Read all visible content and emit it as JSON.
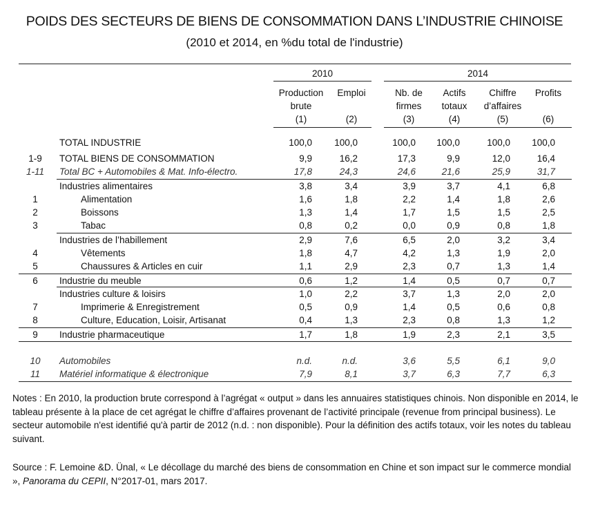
{
  "title": "POIDS DES SECTEURS DE BIENS DE CONSOMMATION DANS L’INDUSTRIE CHINOISE",
  "subtitle": "(2010 et 2014, en %du total de l'industrie)",
  "groups": {
    "y2010": "2010",
    "y2014": "2014"
  },
  "columns": [
    {
      "lines": [
        "Production",
        "brute"
      ],
      "num": "(1)"
    },
    {
      "lines": [
        "Emploi"
      ],
      "num": "(2)"
    },
    {
      "lines": [
        "Nb. de",
        "firmes"
      ],
      "num": "(3)"
    },
    {
      "lines": [
        "Actifs",
        "totaux"
      ],
      "num": "(4)"
    },
    {
      "lines": [
        "Chiffre",
        "d’affaires"
      ],
      "num": "(5)"
    },
    {
      "lines": [
        "Profits"
      ],
      "num": "(6)"
    }
  ],
  "rows": [
    {
      "code": "",
      "label": "TOTAL INDUSTRIE",
      "values": [
        "100,0",
        "100,0",
        "100,0",
        "100,0",
        "100,0",
        "100,0"
      ]
    },
    {
      "code": "1-9",
      "label": "TOTAL BIENS DE CONSOMMATION",
      "values": [
        "9,9",
        "16,2",
        "17,3",
        "9,9",
        "12,0",
        "16,4"
      ]
    },
    {
      "code": "1-11",
      "label": "Total BC + Automobiles & Mat. Info-électro.",
      "values": [
        "17,8",
        "24,3",
        "24,6",
        "21,6",
        "25,9",
        "31,7"
      ]
    },
    {
      "code": "",
      "label": "Industries alimentaires",
      "values": [
        "3,8",
        "3,4",
        "3,9",
        "3,7",
        "4,1",
        "6,8"
      ]
    },
    {
      "code": "1",
      "label": "Alimentation",
      "values": [
        "1,6",
        "1,8",
        "2,2",
        "1,4",
        "1,8",
        "2,6"
      ]
    },
    {
      "code": "2",
      "label": "Boissons",
      "values": [
        "1,3",
        "1,4",
        "1,7",
        "1,5",
        "1,5",
        "2,5"
      ]
    },
    {
      "code": "3",
      "label": "Tabac",
      "values": [
        "0,8",
        "0,2",
        "0,0",
        "0,9",
        "0,8",
        "1,8"
      ]
    },
    {
      "code": "",
      "label": "Industries de l’habillement",
      "values": [
        "2,9",
        "7,6",
        "6,5",
        "2,0",
        "3,2",
        "3,4"
      ]
    },
    {
      "code": "4",
      "label": "Vêtements",
      "values": [
        "1,8",
        "4,7",
        "4,2",
        "1,3",
        "1,9",
        "2,0"
      ]
    },
    {
      "code": "5",
      "label": "Chaussures & Articles en cuir",
      "values": [
        "1,1",
        "2,9",
        "2,3",
        "0,7",
        "1,3",
        "1,4"
      ]
    },
    {
      "code": "6",
      "label": "Industrie du meuble",
      "values": [
        "0,6",
        "1,2",
        "1,4",
        "0,5",
        "0,7",
        "0,7"
      ]
    },
    {
      "code": "",
      "label": "Industries culture & loisirs",
      "values": [
        "1,0",
        "2,2",
        "3,7",
        "1,3",
        "2,0",
        "2,0"
      ]
    },
    {
      "code": "7",
      "label": "Imprimerie & Enregistrement",
      "values": [
        "0,5",
        "0,9",
        "1,4",
        "0,5",
        "0,6",
        "0,8"
      ]
    },
    {
      "code": "8",
      "label": "Culture, Education, Loisir, Artisanat",
      "values": [
        "0,4",
        "1,3",
        "2,3",
        "0,8",
        "1,3",
        "1,2"
      ]
    },
    {
      "code": "9",
      "label": "Industrie pharmaceutique",
      "values": [
        "1,7",
        "1,8",
        "1,9",
        "2,3",
        "2,1",
        "3,5"
      ]
    },
    {
      "code": "10",
      "label": "Automobiles",
      "values": [
        "n.d.",
        "n.d.",
        "3,6",
        "5,5",
        "6,1",
        "9,0"
      ]
    },
    {
      "code": "11",
      "label": "Matériel informatique & électronique",
      "values": [
        "7,9",
        "8,1",
        "3,7",
        "6,3",
        "7,7",
        "6,3"
      ]
    }
  ],
  "notes": "Notes : En 2010, la production brute correspond à l’agrégat « output » dans les annuaires statistiques chinois. Non disponible en 2014, le tableau présente à la place de cet agrégat le chiffre d’affaires provenant de l’activité principale (revenue from principal business). Le secteur automobile n'est identifié qu'à partir de 2012 (n.d. : non disponible). Pour la définition des actifs totaux, voir les notes du tableau suivant.",
  "source": {
    "pre": "Source : F. Lemoine &D. Ünal, « Le décollage du marché des biens de consommation en Chine et son impact sur le commerce mondial », ",
    "pub": "Panorama du CEPII",
    "post": ", N°2017-01, mars 2017."
  }
}
